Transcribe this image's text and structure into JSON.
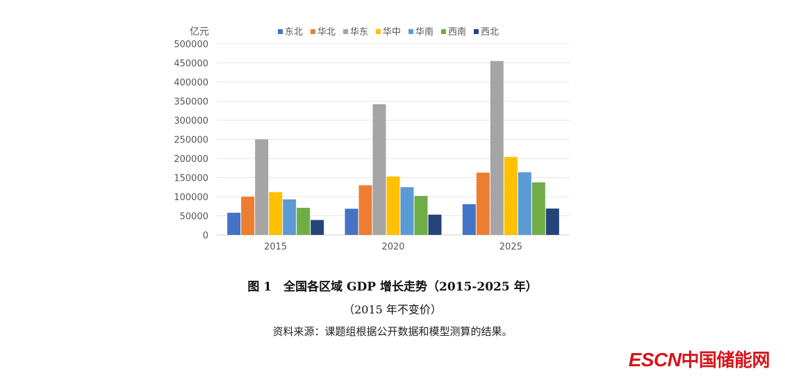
{
  "chart_data": {
    "type": "bar",
    "ylabel": "亿元",
    "categories": [
      "2015",
      "2020",
      "2025"
    ],
    "ylim": [
      0,
      500000
    ],
    "yticks": [
      0,
      50000,
      100000,
      150000,
      200000,
      250000,
      300000,
      350000,
      400000,
      450000,
      500000
    ],
    "grid": true,
    "legend": "top",
    "series": [
      {
        "name": "东北",
        "color": "#4472c4",
        "values": [
          58000,
          68500,
          80500
        ]
      },
      {
        "name": "华北",
        "color": "#ed7d31",
        "values": [
          100000,
          130000,
          163000
        ]
      },
      {
        "name": "华东",
        "color": "#a5a5a5",
        "values": [
          250000,
          342000,
          455000
        ]
      },
      {
        "name": "华中",
        "color": "#ffc000",
        "values": [
          112000,
          153000,
          204000
        ]
      },
      {
        "name": "华南",
        "color": "#5b9bd5",
        "values": [
          93000,
          125000,
          164000
        ]
      },
      {
        "name": "西南",
        "color": "#70ad47",
        "values": [
          71000,
          102000,
          137500
        ]
      },
      {
        "name": "西北",
        "color": "#264478",
        "values": [
          39000,
          53000,
          69000
        ]
      }
    ]
  },
  "caption": {
    "title": "图 1　全国各区域 GDP 增长走势（2015-2025 年）",
    "subtitle": "（2015 年不变价）",
    "source": "资料来源：课题组根据公开数据和模型测算的结果。"
  },
  "logo": {
    "text_latin": "ESCN",
    "text_cn": "中国储能网"
  }
}
